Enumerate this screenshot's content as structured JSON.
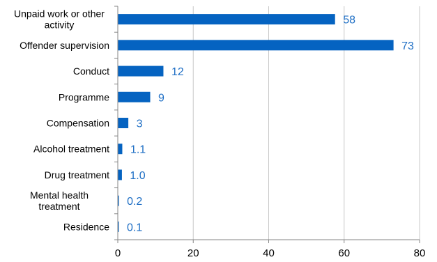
{
  "chart_data": {
    "type": "bar",
    "orientation": "horizontal",
    "categories": [
      [
        "Unpaid work or other",
        "activity"
      ],
      [
        "Offender supervision"
      ],
      [
        "Conduct"
      ],
      [
        "Programme"
      ],
      [
        "Compensation"
      ],
      [
        "Alcohol treatment"
      ],
      [
        "Drug treatment"
      ],
      [
        "Mental health",
        "treatment"
      ],
      [
        "Residence"
      ]
    ],
    "values": [
      57.5,
      73,
      12,
      8.5,
      2.7,
      1.1,
      1.0,
      0.2,
      0.1
    ],
    "data_labels": [
      "58",
      "73",
      "12",
      "9",
      "3",
      "1.1",
      "1.0",
      "0.2",
      "0.1"
    ],
    "xlim": [
      0,
      80
    ],
    "xticks": [
      0,
      20,
      40,
      60,
      80
    ],
    "grid": "vertical",
    "legend": "none",
    "title": "",
    "xlabel": "",
    "ylabel": "",
    "bar_color": "#0563C1",
    "label_color": "#1F6FC5",
    "grid_color": "#C8C8C8"
  }
}
